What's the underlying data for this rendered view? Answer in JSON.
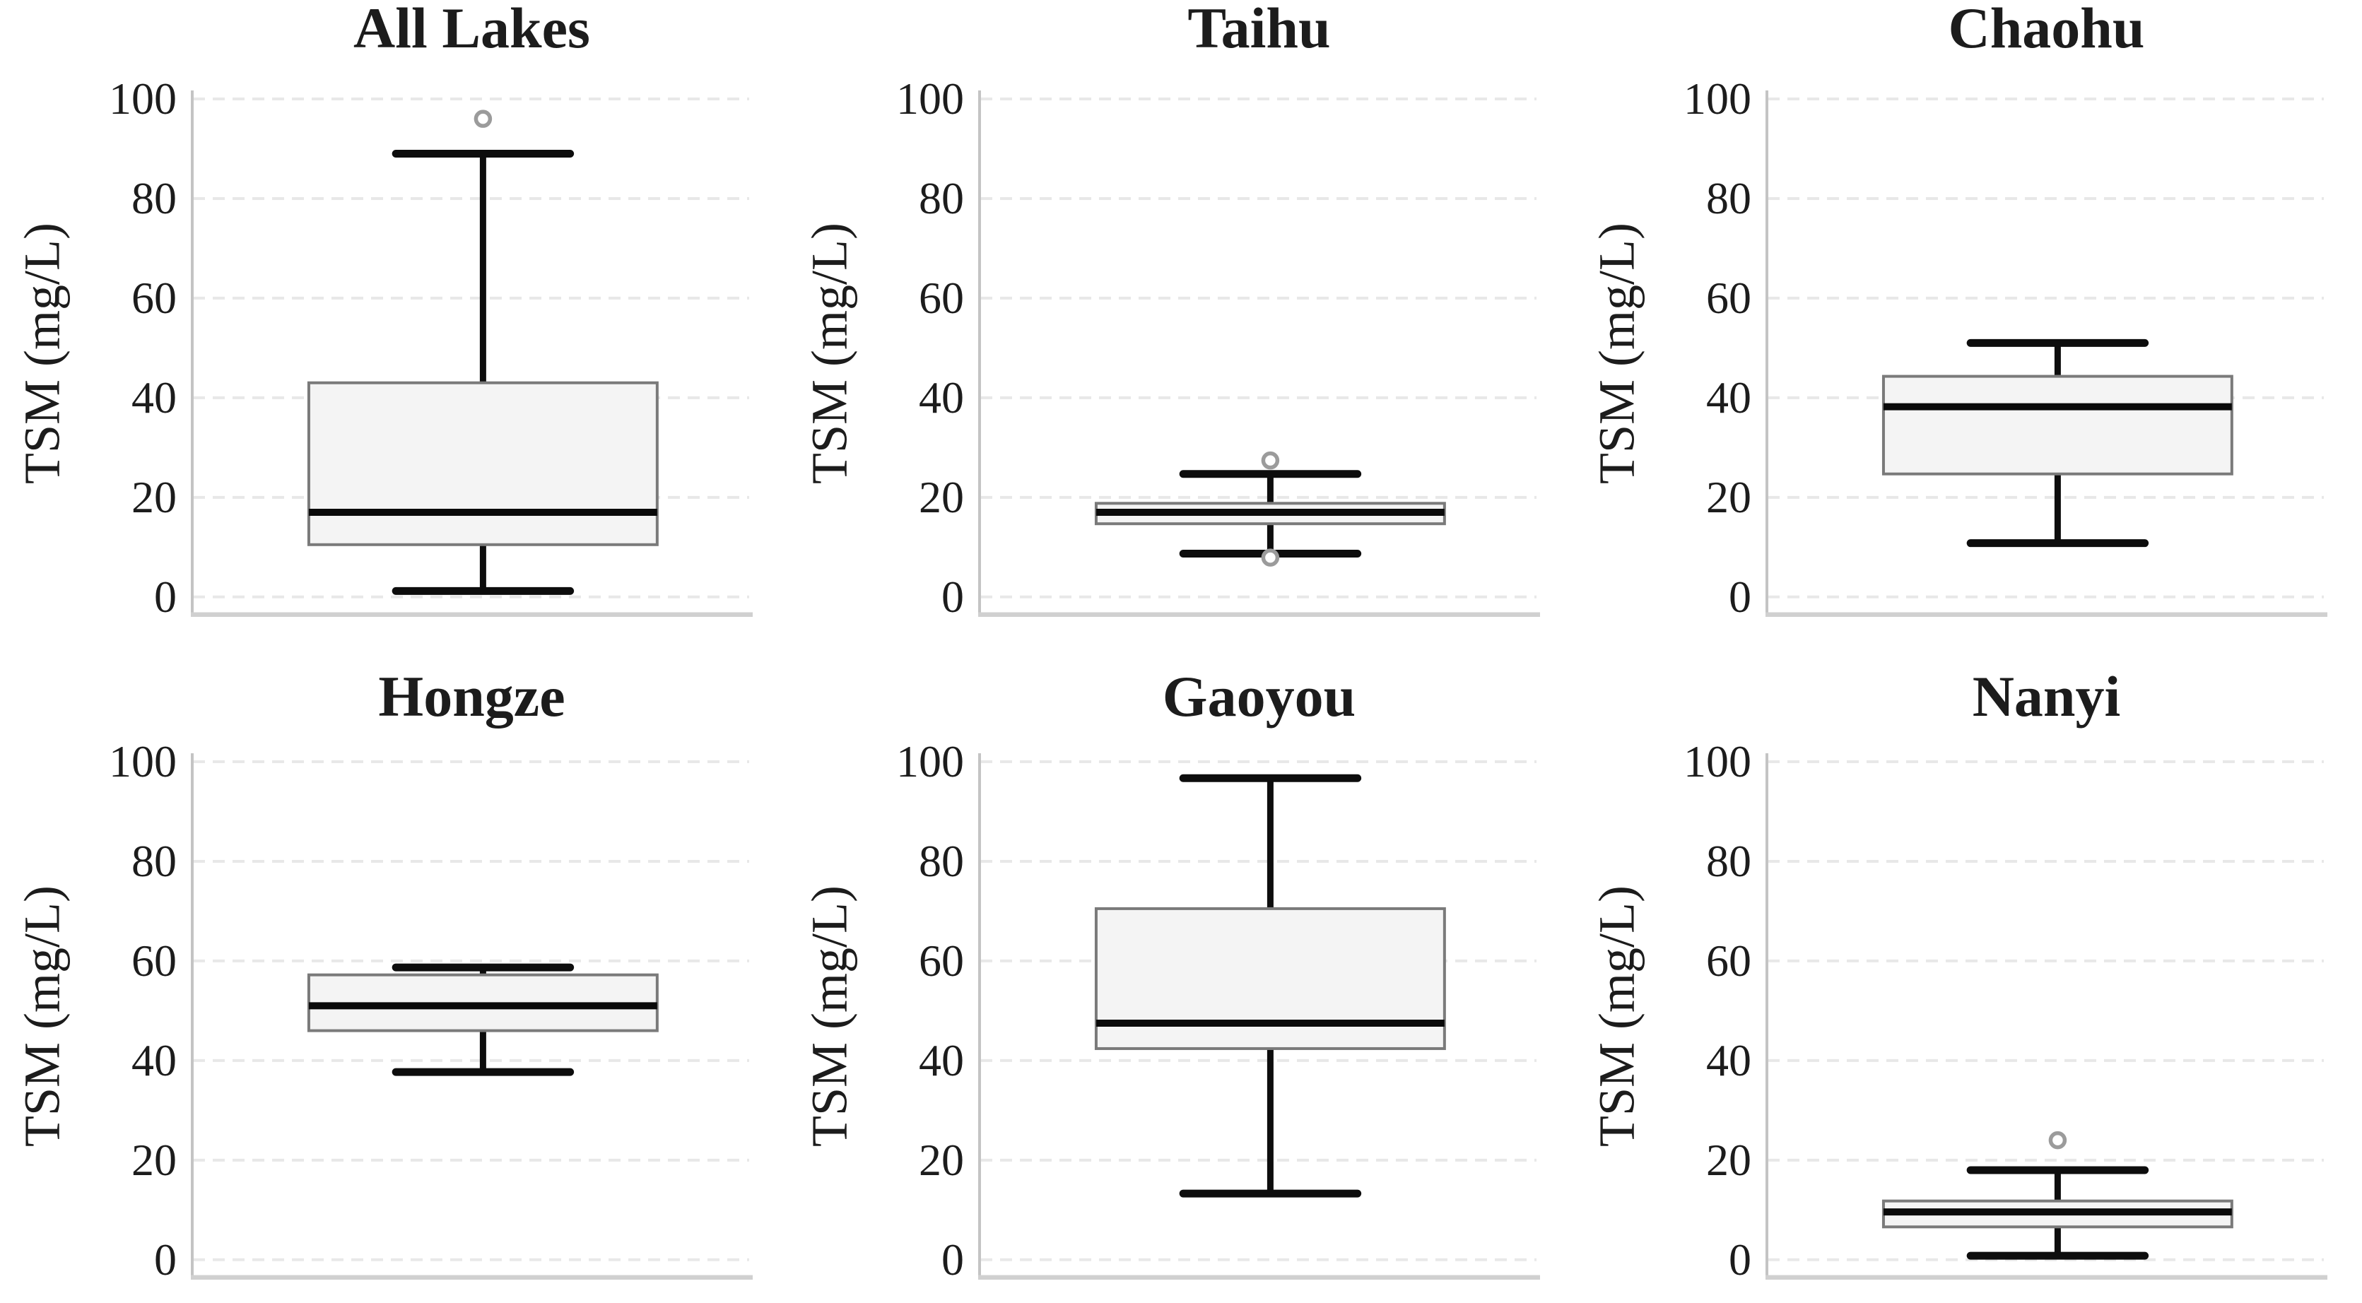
{
  "figure": {
    "layout": "2 rows x 3 columns of box plots",
    "shared_ylabel": "TSM (mg/L)",
    "background": "#ffffff"
  },
  "colors": {
    "text": "#1c1c1c",
    "box_fill": "#f4f4f4",
    "box_edge": "#7a7a7a",
    "median": "#0a0a0a",
    "whisker": "#0d0d0d",
    "outlier_stroke": "#9b9b9b",
    "gridline": "#e8e8e8",
    "spine_left": "#c4c4c4",
    "spine_bottom": "#d0d0d0"
  },
  "chart_data": [
    {
      "type": "box",
      "title": "All Lakes",
      "ylabel": "TSM (mg/L)",
      "yticks": [
        0,
        20,
        40,
        60,
        80,
        100
      ],
      "ylim": [
        0,
        100
      ],
      "grid": "dashed horizontal",
      "box": {
        "q1": 10.5,
        "median": 17,
        "q3": 43,
        "whisker_low": 1.2,
        "whisker_high": 89,
        "outliers": [
          96
        ]
      }
    },
    {
      "type": "box",
      "title": "Taihu",
      "ylabel": "TSM (mg/L)",
      "yticks": [
        0,
        20,
        40,
        60,
        80,
        100
      ],
      "ylim": [
        0,
        100
      ],
      "grid": "dashed horizontal",
      "box": {
        "q1": 14.7,
        "median": 17,
        "q3": 18.8,
        "whisker_low": 8.7,
        "whisker_high": 24.7,
        "outliers": [
          27.4,
          7.9
        ]
      }
    },
    {
      "type": "box",
      "title": "Chaohu",
      "ylabel": "TSM (mg/L)",
      "yticks": [
        0,
        20,
        40,
        60,
        80,
        100
      ],
      "ylim": [
        0,
        100
      ],
      "grid": "dashed horizontal",
      "box": {
        "q1": 24.7,
        "median": 38.2,
        "q3": 44.3,
        "whisker_low": 10.8,
        "whisker_high": 51,
        "outliers": []
      }
    },
    {
      "type": "box",
      "title": "Hongze",
      "ylabel": "TSM (mg/L)",
      "yticks": [
        0,
        20,
        40,
        60,
        80,
        100
      ],
      "ylim": [
        0,
        100
      ],
      "grid": "dashed horizontal",
      "box": {
        "q1": 46,
        "median": 51,
        "q3": 57.2,
        "whisker_low": 37.7,
        "whisker_high": 58.7,
        "outliers": []
      }
    },
    {
      "type": "box",
      "title": "Gaoyou",
      "ylabel": "TSM (mg/L)",
      "yticks": [
        0,
        20,
        40,
        60,
        80,
        100
      ],
      "ylim": [
        0,
        100
      ],
      "grid": "dashed horizontal",
      "box": {
        "q1": 42.4,
        "median": 47.5,
        "q3": 70.5,
        "whisker_low": 13.3,
        "whisker_high": 96.7,
        "outliers": []
      }
    },
    {
      "type": "box",
      "title": "Nanyi",
      "ylabel": "TSM (mg/L)",
      "yticks": [
        0,
        20,
        40,
        60,
        80,
        100
      ],
      "ylim": [
        0,
        100
      ],
      "grid": "dashed horizontal",
      "box": {
        "q1": 6.6,
        "median": 9.6,
        "q3": 11.8,
        "whisker_low": 0.8,
        "whisker_high": 18,
        "outliers": [
          24
        ]
      }
    }
  ]
}
